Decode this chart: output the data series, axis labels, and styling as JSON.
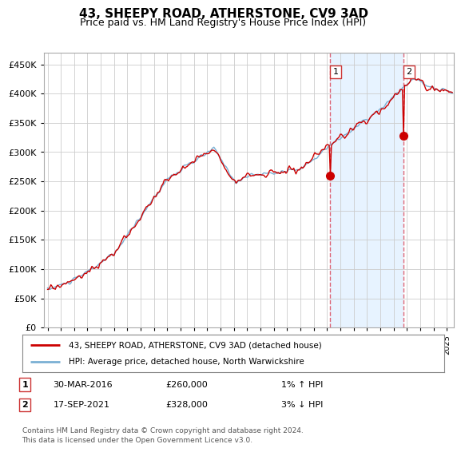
{
  "title": "43, SHEEPY ROAD, ATHERSTONE, CV9 3AD",
  "subtitle": "Price paid vs. HM Land Registry's House Price Index (HPI)",
  "yticks": [
    0,
    50000,
    100000,
    150000,
    200000,
    250000,
    300000,
    350000,
    400000,
    450000
  ],
  "ylim": [
    0,
    470000
  ],
  "xlim_start": 1994.7,
  "xlim_end": 2025.5,
  "sale1_date": 2016.25,
  "sale1_price": 260000,
  "sale1_label": "1",
  "sale2_date": 2021.75,
  "sale2_price": 328000,
  "sale2_label": "2",
  "line_color_red": "#cc0000",
  "line_color_blue": "#7ab0d4",
  "vline_color": "#dd6677",
  "shade_color": "#ddeeff",
  "grid_color": "#cccccc",
  "background_color": "#ffffff",
  "legend_line1": "43, SHEEPY ROAD, ATHERSTONE, CV9 3AD (detached house)",
  "legend_line2": "HPI: Average price, detached house, North Warwickshire",
  "note1_num": "1",
  "note1_date": "30-MAR-2016",
  "note1_price": "£260,000",
  "note1_hpi": "1% ↑ HPI",
  "note2_num": "2",
  "note2_date": "17-SEP-2021",
  "note2_price": "£328,000",
  "note2_hpi": "3% ↓ HPI",
  "footer": "Contains HM Land Registry data © Crown copyright and database right 2024.\nThis data is licensed under the Open Government Licence v3.0."
}
